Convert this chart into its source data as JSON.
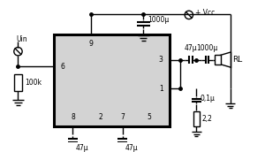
{
  "bg_color": "#ffffff",
  "ic_fill": "#d3d3d3",
  "vcc_label": "+ Vcc",
  "uin_label": "Uin",
  "r100k_label": "100k",
  "cap_1000u_top": "1000μ",
  "cap_47u_left": "47μ",
  "cap_47u_right": "47μ",
  "cap_47u_out": "47μ",
  "cap_1000u_out": "1000μ",
  "cap_01u": "0,1μ",
  "res_22": "2,2",
  "rl_label": "RL",
  "lw": 1.0,
  "pin_fs": 5.5,
  "label_fs": 5.5
}
